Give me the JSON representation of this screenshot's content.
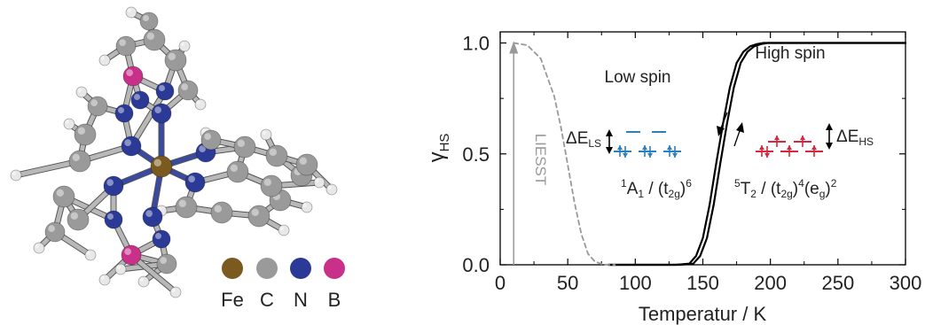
{
  "molecule": {
    "legend": [
      {
        "symbol": "Fe",
        "color": "#7a5a1e"
      },
      {
        "symbol": "C",
        "color": "#9a9a9a"
      },
      {
        "symbol": "N",
        "color": "#2b3a96"
      },
      {
        "symbol": "B",
        "color": "#c8308a"
      }
    ],
    "colors": {
      "Fe": "#7a5a1e",
      "C": "#9a9a9a",
      "N": "#2b3a96",
      "B": "#c8308a",
      "H": "#e8e8e8"
    }
  },
  "chart_data": {
    "type": "line",
    "xlabel": "Temperatur / K",
    "ylabel_main": "γ",
    "ylabel_sub": "HS",
    "xlim": [
      0,
      300
    ],
    "ylim": [
      0.0,
      1.05
    ],
    "xticks": [
      "0",
      "50",
      "100",
      "150",
      "200",
      "250",
      "300"
    ],
    "yticks": [
      "0.0",
      "0.5",
      "1.0"
    ],
    "series": [
      {
        "style": "solid",
        "color": "#000000",
        "x": [
          80,
          130,
          140,
          145,
          150,
          155,
          160,
          165,
          170,
          175,
          180,
          185,
          190,
          195,
          200,
          210,
          300
        ],
        "y": [
          0.0,
          0.0,
          0.005,
          0.04,
          0.12,
          0.27,
          0.46,
          0.64,
          0.8,
          0.91,
          0.96,
          0.985,
          0.995,
          1.0,
          1.0,
          1.0,
          1.0
        ]
      },
      {
        "style": "solid",
        "color": "#000000",
        "x": [
          80,
          133,
          143,
          148,
          153,
          158,
          163,
          168,
          173,
          178,
          183,
          188,
          193,
          198,
          203,
          213,
          300
        ],
        "y": [
          0.0,
          0.0,
          0.005,
          0.04,
          0.12,
          0.27,
          0.46,
          0.64,
          0.8,
          0.91,
          0.96,
          0.985,
          0.995,
          1.0,
          1.0,
          1.0,
          1.0
        ]
      },
      {
        "style": "dashed",
        "color": "#999999",
        "x": [
          10,
          20,
          30,
          40,
          45,
          50,
          55,
          60,
          65,
          70,
          75,
          80,
          85
        ],
        "y": [
          1.0,
          0.99,
          0.93,
          0.76,
          0.62,
          0.45,
          0.28,
          0.14,
          0.05,
          0.015,
          0.003,
          0.0,
          0.0
        ]
      }
    ],
    "liesst": {
      "label": "LIESST",
      "x": 10,
      "y_from": 0.0,
      "y_to": 1.0,
      "color": "#999999"
    },
    "annotations": {
      "low_spin": "Low spin",
      "high_spin": "High spin",
      "delta_ls_main": "ΔE",
      "delta_ls_sub": "LS",
      "delta_hs_main": "ΔE",
      "delta_hs_sub": "HS",
      "ls_state": {
        "a": "1",
        "b": "A",
        "c": "1",
        "d": " / (t",
        "e": "2g",
        "f": ")",
        "g": "6"
      },
      "hs_state": {
        "a": "5",
        "b": "T",
        "c": "2",
        "d": " / (t",
        "e": "2g",
        "f": ")",
        "g": "4",
        "h": "(e",
        "i": "g",
        "j": ")",
        "k": "2"
      },
      "ls_color": "#2a7fc1",
      "hs_color": "#d7263d"
    }
  }
}
